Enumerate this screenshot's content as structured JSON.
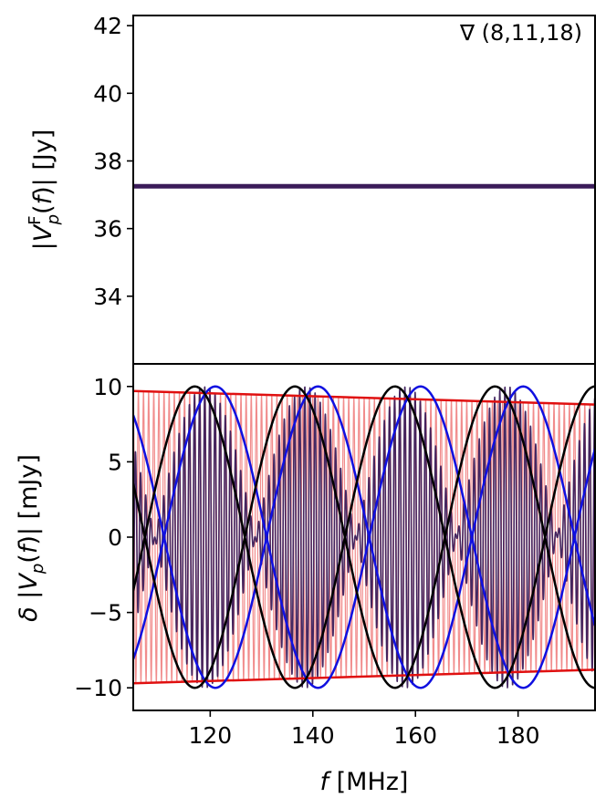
{
  "chart_data": [
    {
      "type": "line",
      "panel": "top",
      "ylabel": "|V_p^F(f)| [Jy]",
      "xlim": [
        105,
        195
      ],
      "ylim": [
        32,
        42.3
      ],
      "yticks": [
        34,
        36,
        38,
        40,
        42
      ],
      "annotation": "∇ (8,11,18)",
      "series": [
        {
          "color": "#3b1c5a",
          "x": [
            105,
            195
          ],
          "y": [
            37.25,
            37.25
          ]
        }
      ]
    },
    {
      "type": "line",
      "panel": "bottom",
      "xlabel": "f [MHz]",
      "ylabel": "δ |V_p(f)| [mJy]",
      "xlim": [
        105,
        195
      ],
      "ylim": [
        -11.5,
        11.5
      ],
      "xticks": [
        120,
        140,
        160,
        180
      ],
      "yticks": [
        -10,
        -5,
        0,
        5,
        10
      ],
      "series": [
        {
          "color": "#f08080",
          "kind": "fast-oscillation",
          "period_mhz": 1.0,
          "envelope_start": 9.7,
          "envelope_end": 8.8
        },
        {
          "color": "#e01010",
          "kind": "envelope",
          "x": [
            105,
            195
          ],
          "y": [
            9.7,
            8.8
          ]
        },
        {
          "color": "#3b1c5a",
          "kind": "fast-oscillation-modulated",
          "period_mhz": 1.0,
          "mod_period_mhz": 39.2,
          "mod_peak_mhz": 119
        },
        {
          "color": "#000000",
          "kind": "sinusoid-pair",
          "amplitude": 10,
          "period_mhz": 39,
          "peak_mhz": 117
        },
        {
          "color": "#1010e0",
          "kind": "sinusoid-pair",
          "amplitude": 10,
          "period_mhz": 40,
          "peak_mhz": 121
        }
      ]
    }
  ]
}
